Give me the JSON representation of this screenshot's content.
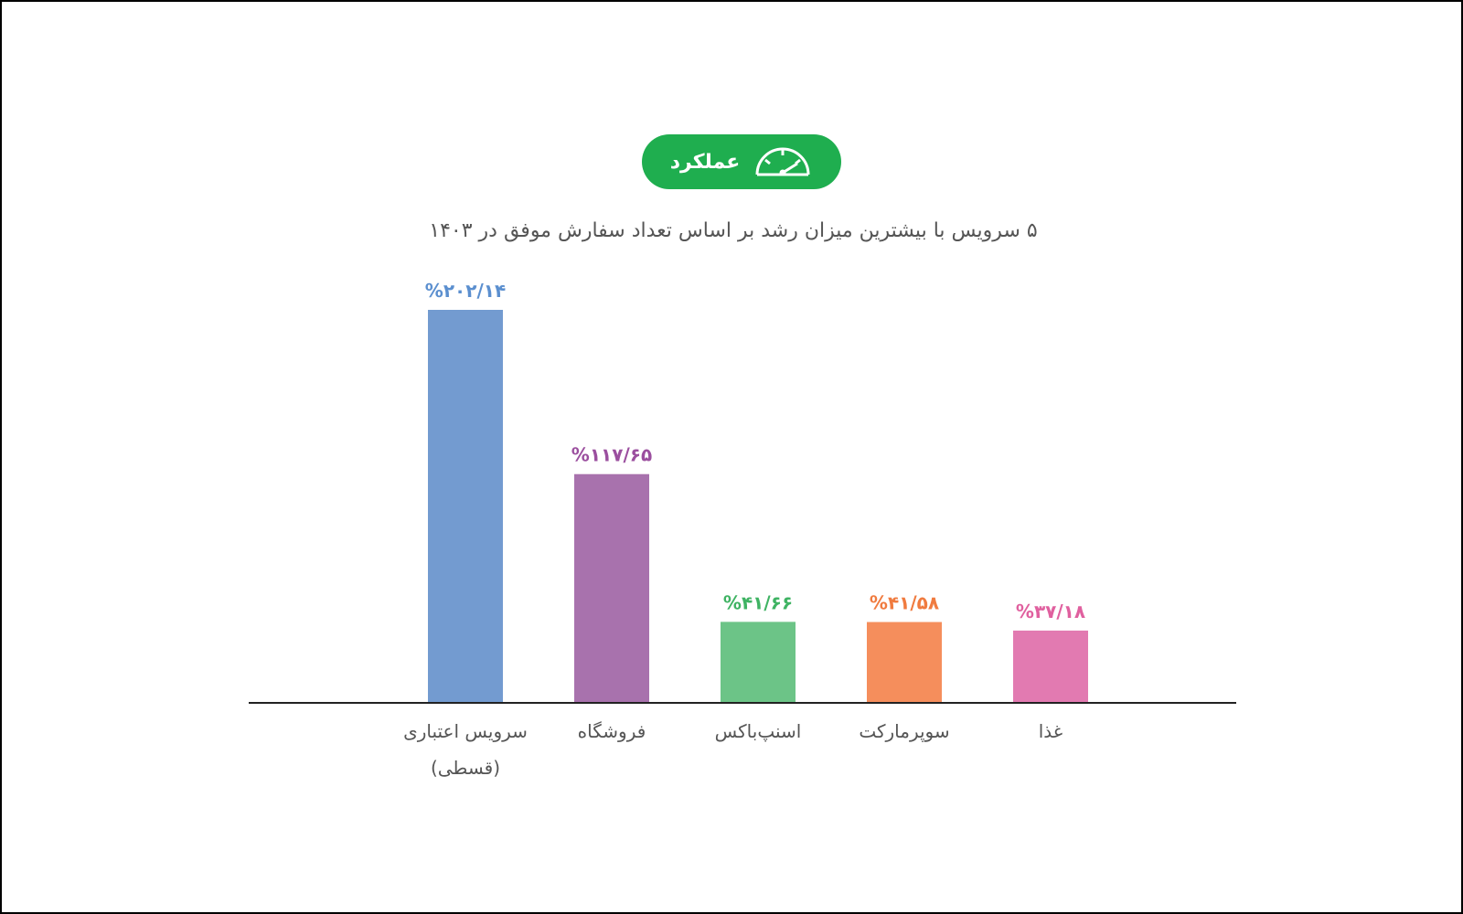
{
  "header": {
    "badge_label": "عملکرد",
    "badge_icon": "speedometer-icon",
    "badge_color": "#1fae4f"
  },
  "chart_data": {
    "type": "bar",
    "title": "۵ سرویس با بیشترین میزان رشد بر اساس تعداد سفارش موفق در ۱۴۰۳",
    "xlabel": "",
    "ylabel": "",
    "categories": [
      "سرویس اعتباری (قسطی)",
      "فروشگاه",
      "اسنپ‌باکس",
      "سوپرمارکت",
      "غذا"
    ],
    "category_lines": [
      [
        "سرویس اعتباری",
        "(قسطی)"
      ],
      [
        "فروشگاه"
      ],
      [
        "اسنپ‌باکس"
      ],
      [
        "سوپرمارکت"
      ],
      [
        "غذا"
      ]
    ],
    "values": [
      202.14,
      117.65,
      41.66,
      41.58,
      37.18
    ],
    "value_labels": [
      "%۲۰۲/۱۴",
      "%۱۱۷/۶۵",
      "%۴۱/۶۶",
      "%۴۱/۵۸",
      "%۳۷/۱۸"
    ],
    "colors": [
      "#739bd0",
      "#a872ad",
      "#6cc487",
      "#f58e5c",
      "#e27ab1"
    ],
    "label_colors": [
      "#5b8fcf",
      "#9b4f9f",
      "#3fb363",
      "#f07b3f",
      "#e0609f"
    ],
    "ylim": [
      0,
      202.14
    ],
    "grid": false,
    "legend": "none"
  }
}
